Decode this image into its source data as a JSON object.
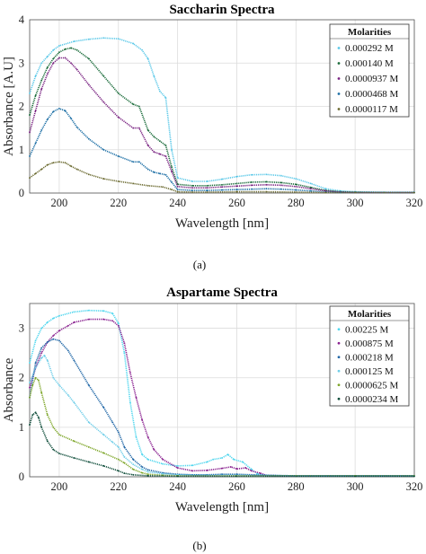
{
  "chart_data": [
    {
      "type": "line",
      "title": "Saccharin Spectra",
      "xlabel": "Wavelength [nm]",
      "ylabel": "Absorbance [A.U]",
      "xlim": [
        190,
        320
      ],
      "ylim": [
        0,
        4
      ],
      "xticks": [
        200,
        220,
        240,
        260,
        280,
        300,
        320
      ],
      "yticks": [
        0,
        1,
        2,
        3,
        4
      ],
      "grid": true,
      "legend_title": "Molarities",
      "legend_position": "top-right",
      "sublabel": "(a)",
      "series": [
        {
          "name": "0.000292 M",
          "color": "#5bc8e8",
          "x": [
            190,
            192,
            194,
            196,
            198,
            200,
            205,
            210,
            215,
            220,
            225,
            228,
            230,
            232,
            234,
            236,
            238,
            240,
            245,
            250,
            255,
            260,
            265,
            270,
            275,
            280,
            285,
            290,
            295,
            300,
            310,
            320
          ],
          "y": [
            2.3,
            2.7,
            3.0,
            3.15,
            3.3,
            3.4,
            3.5,
            3.55,
            3.58,
            3.56,
            3.45,
            3.3,
            3.1,
            2.7,
            2.35,
            2.2,
            1.0,
            0.35,
            0.27,
            0.27,
            0.32,
            0.38,
            0.42,
            0.43,
            0.4,
            0.33,
            0.22,
            0.1,
            0.05,
            0.03,
            0.02,
            0.02
          ]
        },
        {
          "name": "0.000140 M",
          "color": "#1a6b3a",
          "x": [
            190,
            192,
            194,
            196,
            198,
            200,
            202,
            204,
            206,
            210,
            215,
            220,
            225,
            227,
            230,
            232,
            234,
            236,
            238,
            240,
            245,
            250,
            255,
            260,
            265,
            270,
            275,
            280,
            285,
            290,
            295,
            300,
            310,
            320
          ],
          "y": [
            1.8,
            2.25,
            2.6,
            2.9,
            3.1,
            3.25,
            3.32,
            3.35,
            3.3,
            3.1,
            2.7,
            2.3,
            2.05,
            2.0,
            1.45,
            1.3,
            1.2,
            1.1,
            0.6,
            0.2,
            0.17,
            0.17,
            0.19,
            0.22,
            0.25,
            0.26,
            0.24,
            0.2,
            0.13,
            0.06,
            0.03,
            0.02,
            0.01,
            0.01
          ]
        },
        {
          "name": "0.0000937 M",
          "color": "#7a2482",
          "x": [
            190,
            192,
            194,
            196,
            198,
            200,
            202,
            204,
            206,
            210,
            215,
            220,
            225,
            227,
            230,
            232,
            234,
            236,
            238,
            240,
            245,
            250,
            255,
            260,
            265,
            270,
            275,
            280,
            285,
            290,
            295,
            300,
            310,
            320
          ],
          "y": [
            1.4,
            1.9,
            2.4,
            2.75,
            3.0,
            3.12,
            3.12,
            3.0,
            2.85,
            2.5,
            2.1,
            1.75,
            1.5,
            1.5,
            1.1,
            0.95,
            0.9,
            0.85,
            0.5,
            0.15,
            0.12,
            0.12,
            0.14,
            0.16,
            0.18,
            0.19,
            0.18,
            0.15,
            0.1,
            0.05,
            0.02,
            0.01,
            0.01,
            0.01
          ]
        },
        {
          "name": "0.0000468 M",
          "color": "#1d6fa5",
          "x": [
            190,
            192,
            194,
            196,
            198,
            200,
            202,
            204,
            206,
            210,
            215,
            220,
            225,
            227,
            230,
            232,
            234,
            236,
            238,
            240,
            245,
            250,
            255,
            260,
            265,
            270,
            275,
            280,
            285,
            290,
            295,
            300,
            310,
            320
          ],
          "y": [
            0.85,
            1.15,
            1.45,
            1.7,
            1.88,
            1.95,
            1.9,
            1.72,
            1.52,
            1.25,
            1.0,
            0.85,
            0.72,
            0.72,
            0.55,
            0.48,
            0.45,
            0.42,
            0.25,
            0.08,
            0.06,
            0.06,
            0.07,
            0.08,
            0.09,
            0.1,
            0.09,
            0.07,
            0.05,
            0.02,
            0.01,
            0.01,
            0.01,
            0.01
          ]
        },
        {
          "name": "0.0000117 M",
          "color": "#6b6a30",
          "x": [
            190,
            192,
            194,
            196,
            198,
            200,
            202,
            204,
            206,
            210,
            215,
            220,
            225,
            230,
            235,
            238,
            240,
            245,
            250,
            260,
            270,
            280,
            290,
            300,
            310,
            320
          ],
          "y": [
            0.35,
            0.45,
            0.55,
            0.65,
            0.7,
            0.72,
            0.7,
            0.62,
            0.55,
            0.43,
            0.33,
            0.27,
            0.22,
            0.17,
            0.14,
            0.08,
            0.03,
            0.02,
            0.02,
            0.03,
            0.03,
            0.02,
            0.01,
            0.01,
            0.01,
            0.01
          ]
        }
      ]
    },
    {
      "type": "line",
      "title": "Aspartame Spectra",
      "xlabel": "Wavelength [nm]",
      "ylabel": "Absorbance",
      "xlim": [
        190,
        320
      ],
      "ylim": [
        0,
        3.5
      ],
      "xticks": [
        200,
        220,
        240,
        260,
        280,
        300,
        320
      ],
      "yticks": [
        0,
        1,
        2,
        3
      ],
      "grid": true,
      "legend_title": "Molarities",
      "legend_position": "top-right",
      "sublabel": "(b)",
      "series": [
        {
          "name": "0.00225 M",
          "color": "#4fd6ee",
          "x": [
            190,
            192,
            194,
            196,
            198,
            200,
            205,
            210,
            215,
            218,
            220,
            222,
            224,
            226,
            228,
            230,
            235,
            240,
            245,
            250,
            252,
            255,
            257,
            259,
            262,
            265,
            267,
            270,
            275,
            280,
            300,
            320
          ],
          "y": [
            2.3,
            2.75,
            3.0,
            3.12,
            3.2,
            3.25,
            3.33,
            3.36,
            3.35,
            3.3,
            3.1,
            2.5,
            1.5,
            0.8,
            0.45,
            0.35,
            0.26,
            0.22,
            0.23,
            0.3,
            0.35,
            0.38,
            0.45,
            0.35,
            0.3,
            0.15,
            0.06,
            0.03,
            0.02,
            0.02,
            0.02,
            0.02
          ]
        },
        {
          "name": "0.000875 M",
          "color": "#8a2290",
          "x": [
            190,
            192,
            194,
            196,
            198,
            200,
            203,
            205,
            210,
            215,
            218,
            220,
            222,
            224,
            226,
            228,
            230,
            232,
            235,
            240,
            245,
            250,
            255,
            258,
            260,
            263,
            265,
            268,
            270,
            275,
            280,
            300,
            320
          ],
          "y": [
            1.8,
            2.2,
            2.5,
            2.72,
            2.85,
            2.95,
            3.05,
            3.12,
            3.18,
            3.18,
            3.15,
            3.05,
            2.7,
            2.1,
            1.6,
            1.15,
            0.8,
            0.55,
            0.35,
            0.18,
            0.12,
            0.13,
            0.17,
            0.2,
            0.16,
            0.18,
            0.12,
            0.07,
            0.03,
            0.02,
            0.02,
            0.02,
            0.02
          ]
        },
        {
          "name": "0.000218 M",
          "color": "#1f66a6",
          "x": [
            190,
            192,
            194,
            196,
            198,
            200,
            203,
            205,
            210,
            215,
            218,
            220,
            222,
            225,
            228,
            230,
            235,
            240,
            245,
            250,
            255,
            260,
            270,
            280,
            300,
            320
          ],
          "y": [
            1.6,
            2.3,
            2.6,
            2.72,
            2.78,
            2.75,
            2.55,
            2.35,
            1.85,
            1.4,
            1.1,
            0.9,
            0.6,
            0.35,
            0.2,
            0.14,
            0.08,
            0.05,
            0.04,
            0.04,
            0.05,
            0.05,
            0.03,
            0.02,
            0.02,
            0.02
          ]
        },
        {
          "name": "0.000125 M",
          "color": "#6fcde8",
          "x": [
            190,
            192,
            194,
            195,
            196,
            198,
            200,
            203,
            205,
            210,
            215,
            218,
            220,
            222,
            225,
            228,
            230,
            235,
            240,
            250,
            260,
            280,
            300,
            320
          ],
          "y": [
            1.9,
            2.2,
            2.4,
            2.45,
            2.35,
            2.0,
            1.85,
            1.65,
            1.5,
            1.1,
            0.85,
            0.7,
            0.6,
            0.4,
            0.25,
            0.15,
            0.1,
            0.06,
            0.04,
            0.03,
            0.03,
            0.02,
            0.02,
            0.02
          ]
        },
        {
          "name": "0.0000625 M",
          "color": "#7ea62a",
          "x": [
            190,
            191,
            192,
            193,
            194,
            196,
            198,
            200,
            205,
            210,
            215,
            220,
            222,
            225,
            228,
            230,
            235,
            240,
            260,
            280,
            300,
            320
          ],
          "y": [
            1.6,
            1.85,
            2.0,
            1.95,
            1.7,
            1.25,
            1.0,
            0.85,
            0.72,
            0.6,
            0.48,
            0.35,
            0.28,
            0.15,
            0.08,
            0.05,
            0.03,
            0.02,
            0.02,
            0.02,
            0.02,
            0.02
          ]
        },
        {
          "name": "0.0000234 M",
          "color": "#0f4d3a",
          "x": [
            190,
            191,
            192,
            193,
            194,
            196,
            198,
            200,
            205,
            210,
            215,
            220,
            222,
            225,
            230,
            240,
            260,
            280,
            300,
            320
          ],
          "y": [
            1.05,
            1.25,
            1.3,
            1.2,
            1.0,
            0.72,
            0.55,
            0.47,
            0.38,
            0.3,
            0.22,
            0.12,
            0.07,
            0.04,
            0.02,
            0.01,
            0.01,
            0.01,
            0.01,
            0.01
          ]
        }
      ]
    }
  ]
}
